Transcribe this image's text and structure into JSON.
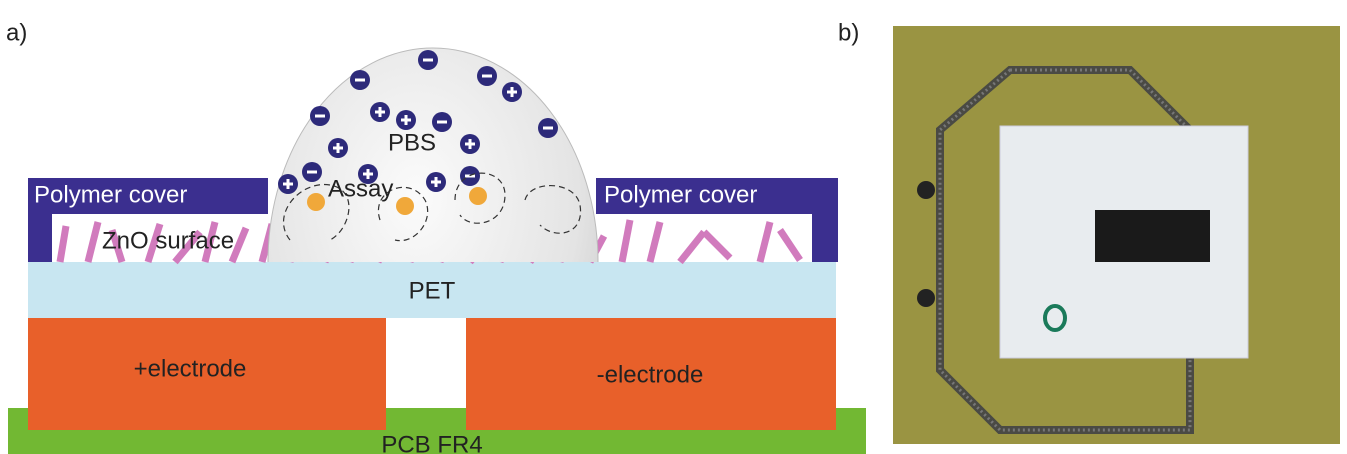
{
  "panels": {
    "a": {
      "label": "a)",
      "layers": {
        "cover_left": "Polymer cover",
        "cover_right": "Polymer cover",
        "zno": "ZnO surface",
        "droplet": "PBS",
        "assay": "Assay",
        "pet": "PET",
        "electrode_left": "+electrode",
        "electrode_right": "-electrode",
        "pcb": "PCB FR4"
      }
    },
    "b": {
      "label": "b)"
    }
  }
}
